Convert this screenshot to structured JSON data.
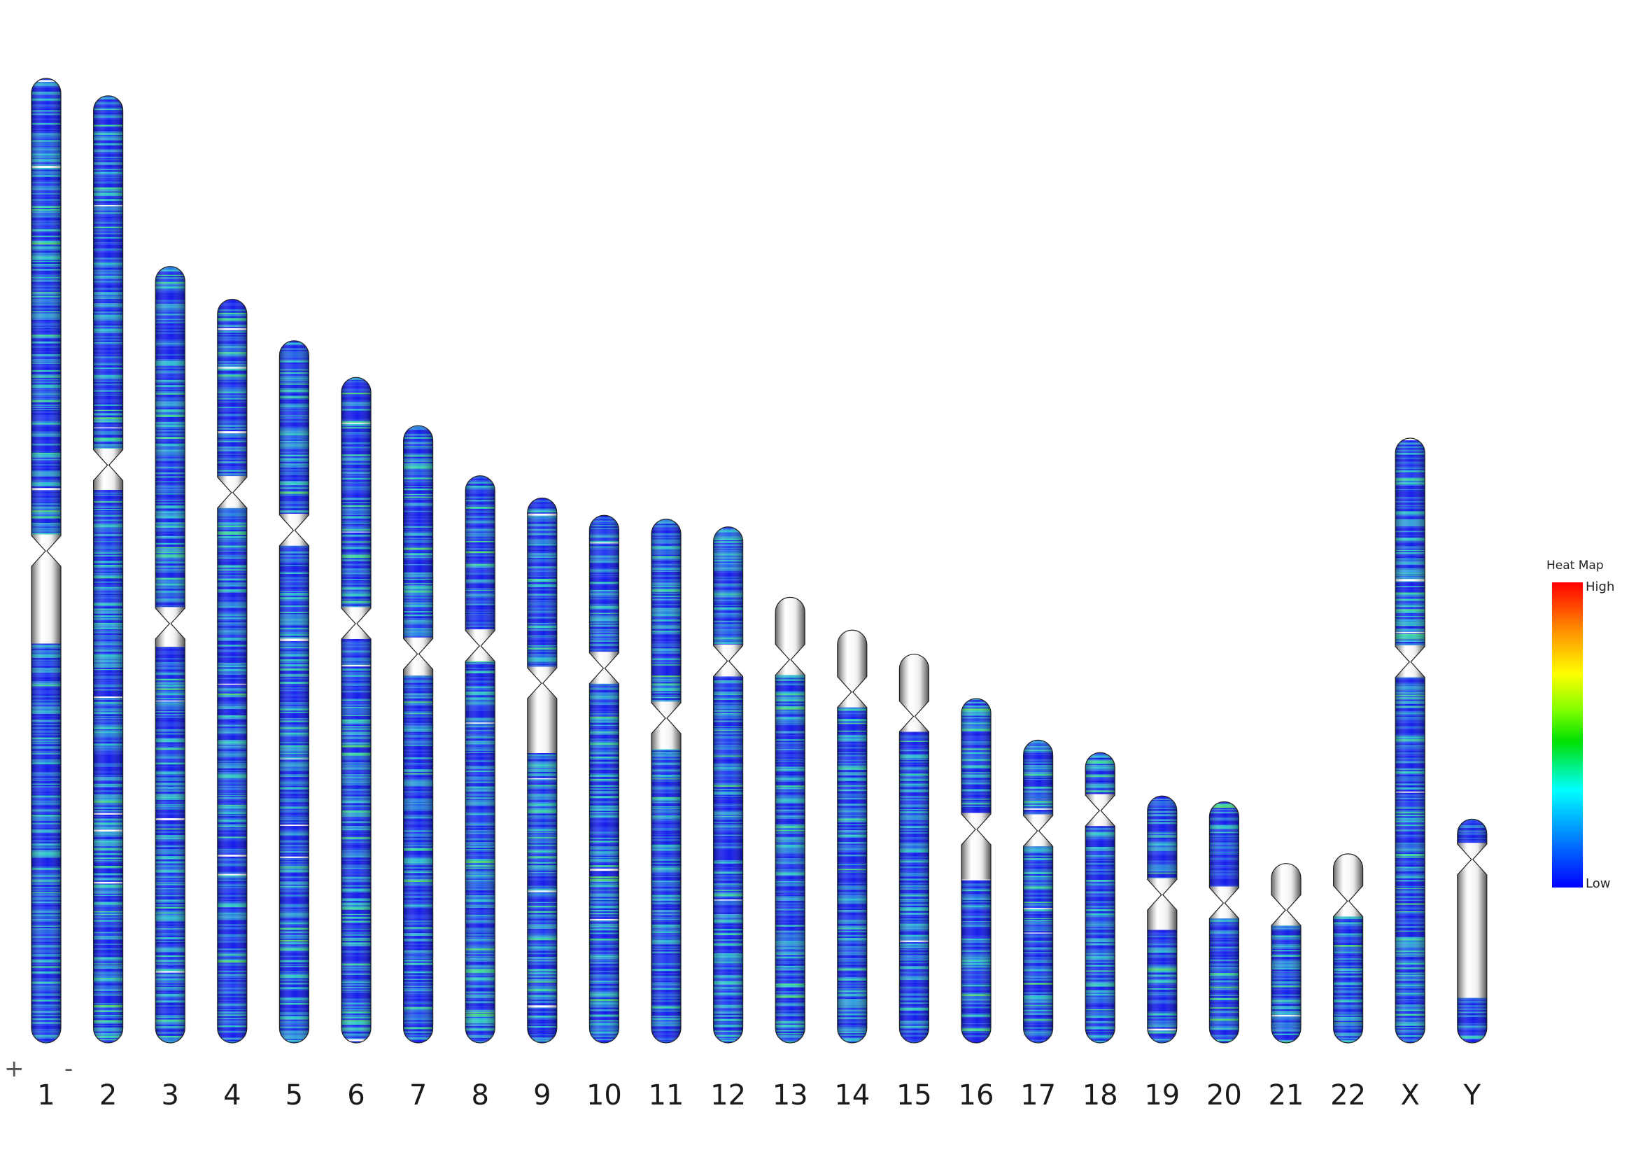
{
  "strand_labels": {
    "plus": "+",
    "minus": "-"
  },
  "legend": {
    "title": "Heat Map",
    "high_label": "High",
    "low_label": "Low"
  },
  "colors": {
    "low": "#0000ff",
    "mid": "#00ffff",
    "green": "#00e000",
    "high": "#ff0000",
    "unmapped": "#e8e8e8",
    "outline": "#333333"
  },
  "chromosomes": [
    {
      "label": "1",
      "rel_length": 1.0,
      "centromere": 0.49,
      "gray_q": 0.08
    },
    {
      "label": "2",
      "rel_length": 0.982,
      "centromere": 0.39,
      "gray_q": 0.01
    },
    {
      "label": "3",
      "rel_length": 0.805,
      "centromere": 0.46,
      "gray_q": 0.01
    },
    {
      "label": "4",
      "rel_length": 0.771,
      "centromere": 0.26,
      "gray_q": 0.0
    },
    {
      "label": "5",
      "rel_length": 0.728,
      "centromere": 0.27,
      "gray_q": 0.0
    },
    {
      "label": "6",
      "rel_length": 0.69,
      "centromere": 0.37,
      "gray_q": 0.0
    },
    {
      "label": "7",
      "rel_length": 0.64,
      "centromere": 0.37,
      "gray_q": 0.01
    },
    {
      "label": "8",
      "rel_length": 0.588,
      "centromere": 0.3,
      "gray_q": 0.0
    },
    {
      "label": "9",
      "rel_length": 0.565,
      "centromere": 0.34,
      "gray_q": 0.1
    },
    {
      "label": "10",
      "rel_length": 0.547,
      "centromere": 0.29,
      "gray_q": 0.0
    },
    {
      "label": "11",
      "rel_length": 0.543,
      "centromere": 0.38,
      "gray_q": 0.03
    },
    {
      "label": "12",
      "rel_length": 0.535,
      "centromere": 0.26,
      "gray_q": 0.0
    },
    {
      "label": "13",
      "rel_length": 0.462,
      "centromere": 0.14,
      "gray_q": 0.0,
      "p_gray": true
    },
    {
      "label": "14",
      "rel_length": 0.428,
      "centromere": 0.15,
      "gray_q": 0.0,
      "p_gray": true
    },
    {
      "label": "15",
      "rel_length": 0.403,
      "centromere": 0.16,
      "gray_q": 0.0,
      "p_gray": true
    },
    {
      "label": "16",
      "rel_length": 0.357,
      "centromere": 0.38,
      "gray_q": 0.1
    },
    {
      "label": "17",
      "rel_length": 0.314,
      "centromere": 0.3,
      "gray_q": 0.0
    },
    {
      "label": "18",
      "rel_length": 0.301,
      "centromere": 0.2,
      "gray_q": 0.0
    },
    {
      "label": "19",
      "rel_length": 0.256,
      "centromere": 0.4,
      "gray_q": 0.08
    },
    {
      "label": "20",
      "rel_length": 0.25,
      "centromere": 0.42,
      "gray_q": 0.0
    },
    {
      "label": "21",
      "rel_length": 0.186,
      "centromere": 0.26,
      "gray_q": 0.0,
      "p_gray": true
    },
    {
      "label": "22",
      "rel_length": 0.196,
      "centromere": 0.25,
      "gray_q": 0.0,
      "p_gray": true
    },
    {
      "label": "X",
      "rel_length": 0.627,
      "centromere": 0.37,
      "gray_q": 0.0
    },
    {
      "label": "Y",
      "rel_length": 0.232,
      "centromere": 0.18,
      "gray_q": 0.55
    }
  ]
}
